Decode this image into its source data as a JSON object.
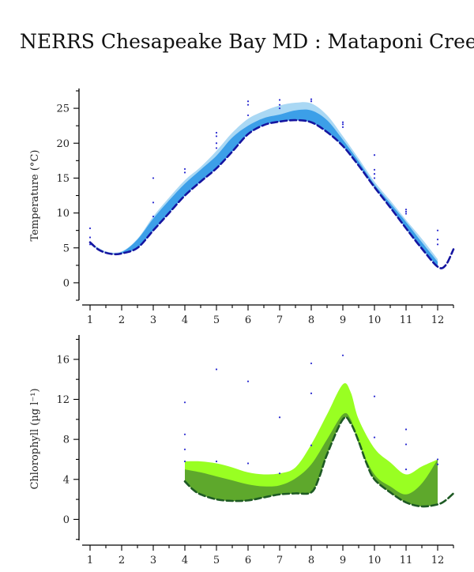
{
  "title": "NERRS Chesapeake Bay MD : Mataponi Creek",
  "colors": {
    "temp_light": "#aad8f4",
    "temp_mid": "#3c9fe8",
    "temp_line": "#1515a0",
    "temp_points": "#2a2ad0",
    "chl_light": "#99ff22",
    "chl_dark": "#5ea82c",
    "chl_line": "#1e5a24",
    "chl_points": "#2a2ad0",
    "axis": "#000000"
  },
  "chart_data": [
    {
      "type": "area",
      "ylabel": "Temperature (°C)",
      "xlim": [
        0.75,
        12.5
      ],
      "ylim": [
        -2.5,
        27.5
      ],
      "xticks": [
        1,
        2,
        3,
        4,
        5,
        6,
        7,
        8,
        9,
        10,
        11,
        12
      ],
      "yticks": [
        0,
        5,
        10,
        15,
        20,
        25
      ],
      "band_outer_upper": {
        "x": [
          1,
          1.5,
          2,
          2.5,
          3,
          3.5,
          4,
          4.5,
          5,
          5.5,
          6,
          6.5,
          7,
          7.5,
          8,
          8.5,
          9,
          9.5,
          10,
          10.5,
          11,
          11.5,
          12
        ],
        "y": [
          5.8,
          4.5,
          4.5,
          6.3,
          9.5,
          12.2,
          14.7,
          16.6,
          18.9,
          21.5,
          23.5,
          24.6,
          25.4,
          25.8,
          25.7,
          24.0,
          21.0,
          17.8,
          14.5,
          11.8,
          9.0,
          6.3,
          3.4
        ]
      },
      "band_inner_upper": {
        "x": [
          1,
          1.5,
          2,
          2.5,
          3,
          3.5,
          4,
          4.5,
          5,
          5.5,
          6,
          6.5,
          7,
          7.5,
          8,
          8.5,
          9,
          9.5,
          10,
          10.5,
          11,
          11.5,
          12
        ],
        "y": [
          5.5,
          4.3,
          4.4,
          6.2,
          9.2,
          11.8,
          14.2,
          16.2,
          18.2,
          20.8,
          22.5,
          23.6,
          24.1,
          24.7,
          24.7,
          23.3,
          20.5,
          17.4,
          14.1,
          11.4,
          8.7,
          5.8,
          3.0
        ]
      },
      "median_line": {
        "x": [
          1,
          1.25,
          1.5,
          1.75,
          2,
          2.5,
          3,
          3.5,
          4,
          4.5,
          5,
          5.5,
          6,
          6.5,
          7,
          7.5,
          8,
          8.5,
          9,
          9.5,
          10,
          10.5,
          11,
          11.5,
          12,
          12.25,
          12.5
        ],
        "y": [
          5.8,
          4.8,
          4.3,
          4.1,
          4.2,
          5.0,
          7.5,
          10.0,
          12.5,
          14.5,
          16.4,
          18.8,
          21.3,
          22.6,
          23.1,
          23.3,
          23.0,
          21.6,
          19.6,
          16.8,
          13.7,
          10.8,
          7.8,
          4.9,
          2.3,
          2.5,
          4.8
        ]
      },
      "observations": {
        "x": [
          1,
          1,
          1,
          3,
          3,
          3,
          4,
          4,
          5,
          5,
          5,
          5,
          6,
          6,
          6,
          7,
          7,
          7,
          8,
          8,
          9,
          9,
          9,
          10,
          10,
          10,
          10,
          11,
          11,
          11,
          12,
          12,
          12
        ],
        "y": [
          7.8,
          6.5,
          5.5,
          15.0,
          11.5,
          9.5,
          16.3,
          15.8,
          21.5,
          21.0,
          20.0,
          19.3,
          26.0,
          25.5,
          24.0,
          26.2,
          25.5,
          25.0,
          26.3,
          26.0,
          23.0,
          22.7,
          22.3,
          18.3,
          16.2,
          15.6,
          15.0,
          10.5,
          10.2,
          9.9,
          7.5,
          6.2,
          5.5
        ]
      }
    },
    {
      "type": "area",
      "ylabel": "Chlorophyll (µg l⁻¹)",
      "xlim": [
        0.75,
        12.5
      ],
      "ylim": [
        -2.1,
        18.2
      ],
      "xticks": [
        1,
        2,
        3,
        4,
        5,
        6,
        7,
        8,
        9,
        10,
        11,
        12
      ],
      "yticks": [
        0,
        4,
        8,
        12,
        16
      ],
      "band_light_upper": {
        "x": [
          4,
          4.5,
          5,
          5.5,
          6,
          6.5,
          7,
          7.5,
          8,
          8.5,
          9,
          9.25,
          9.5,
          10,
          10.5,
          11,
          11.5,
          12
        ],
        "y": [
          5.8,
          5.8,
          5.6,
          5.2,
          4.7,
          4.5,
          4.6,
          5.2,
          7.5,
          10.5,
          13.5,
          12.7,
          10.0,
          7.1,
          5.7,
          4.5,
          5.3,
          6.0
        ]
      },
      "band_dark_upper": {
        "x": [
          4,
          4.5,
          5,
          5.5,
          6,
          6.5,
          7,
          7.5,
          8,
          8.5,
          9,
          9.25,
          9.5,
          10,
          10.5,
          11,
          11.5,
          12
        ],
        "y": [
          5.0,
          4.7,
          4.3,
          3.9,
          3.5,
          3.3,
          3.4,
          4.1,
          5.5,
          8.0,
          10.5,
          10.0,
          7.6,
          4.5,
          3.3,
          2.5,
          3.6,
          6.0
        ]
      },
      "median_line": {
        "x": [
          4,
          4.25,
          4.5,
          5,
          5.5,
          6,
          6.5,
          7,
          7.5,
          8,
          8.25,
          8.5,
          9,
          9.25,
          9.5,
          9.75,
          10,
          10.5,
          11,
          11.5,
          12,
          12.25,
          12.5
        ],
        "y": [
          3.8,
          3.0,
          2.5,
          2.0,
          1.85,
          1.9,
          2.2,
          2.5,
          2.6,
          2.7,
          4.2,
          6.5,
          10.0,
          9.6,
          7.8,
          5.6,
          4.0,
          2.7,
          1.7,
          1.3,
          1.5,
          1.9,
          2.6
        ]
      },
      "observations": {
        "x": [
          4,
          4,
          4,
          4,
          5,
          5,
          6,
          6,
          7,
          7,
          8,
          8,
          8,
          9,
          10,
          10,
          11,
          11,
          11,
          12,
          12
        ],
        "y": [
          11.7,
          8.5,
          7.0,
          5.8,
          15.0,
          5.8,
          13.8,
          5.6,
          10.2,
          4.6,
          15.6,
          12.6,
          7.4,
          16.4,
          12.3,
          8.2,
          9.0,
          7.5,
          5.0,
          6.0,
          5.5
        ]
      }
    }
  ]
}
